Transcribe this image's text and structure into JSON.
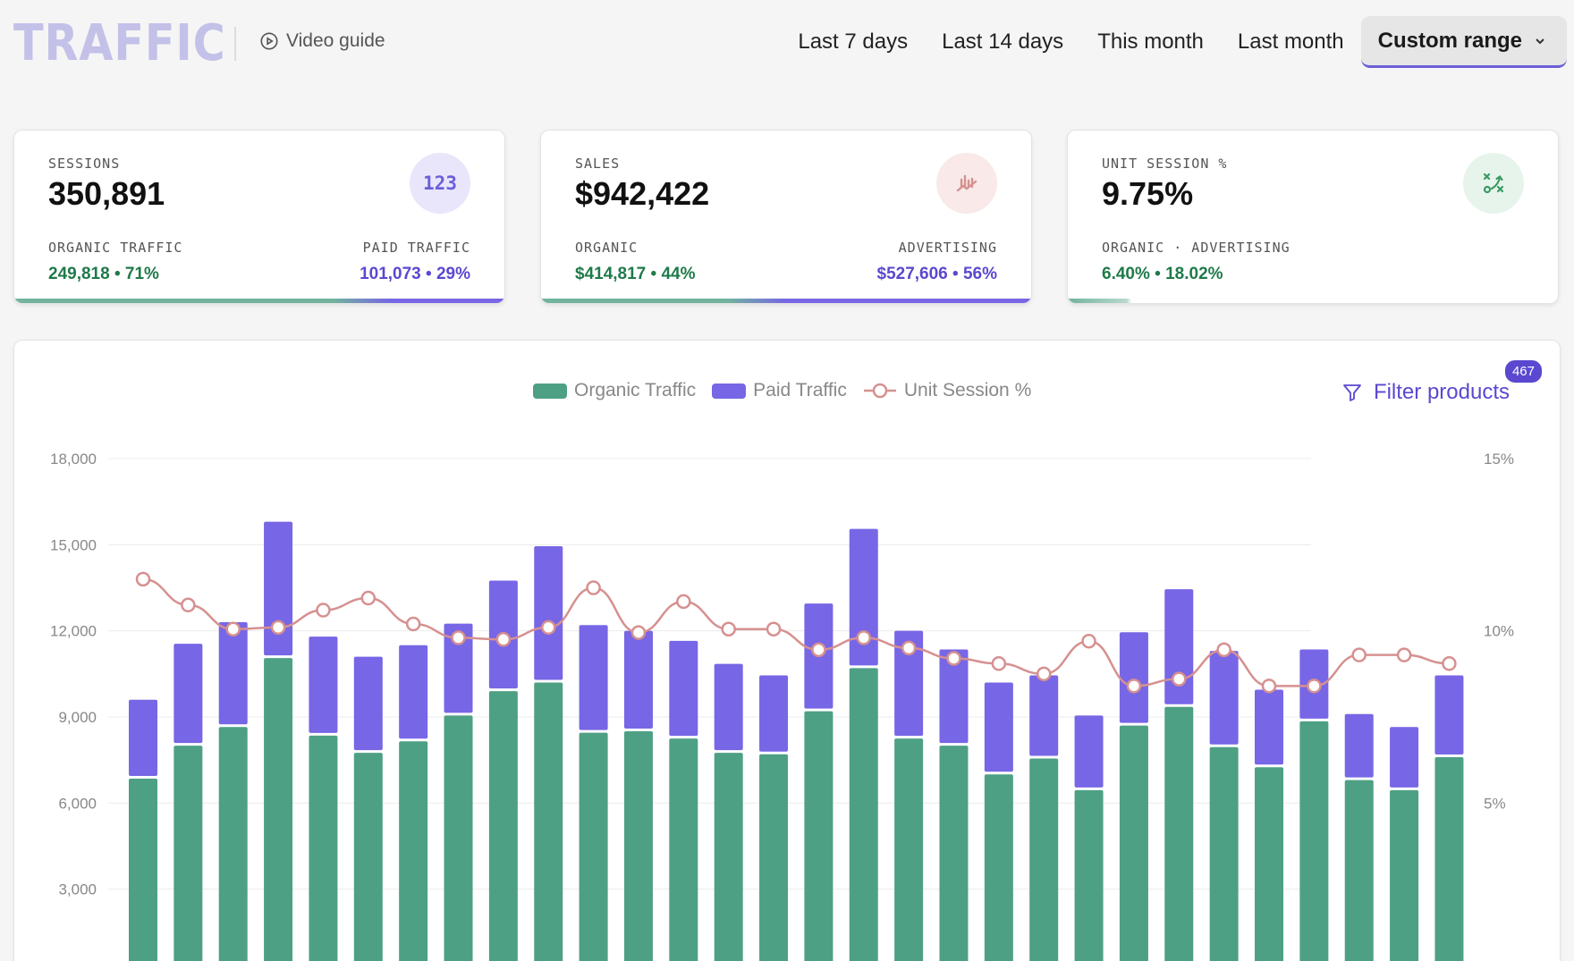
{
  "header": {
    "title": "TRAFFIC",
    "video_guide": "Video guide",
    "ranges": [
      "Last 7 days",
      "Last 14 days",
      "This month",
      "Last month"
    ],
    "active_range": "Custom range"
  },
  "cards": {
    "sessions": {
      "label": "SESSIONS",
      "value": "350,891",
      "icon": "123",
      "left_label": "ORGANIC TRAFFIC",
      "left_value": "249,818",
      "left_pct": "71%",
      "right_label": "PAID TRAFFIC",
      "right_value": "101,073",
      "right_pct": "29%",
      "split": 0.71
    },
    "sales": {
      "label": "SALES",
      "value": "$942,422",
      "left_label": "ORGANIC",
      "left_value": "$414,817",
      "left_pct": "44%",
      "right_label": "ADVERTISING",
      "right_value": "$527,606",
      "right_pct": "56%",
      "split": 0.44
    },
    "unit_session": {
      "label": "UNIT SESSION %",
      "value": "9.75%",
      "sub_label": "ORGANIC · ADVERTISING",
      "organic_value": "6.40%",
      "advertising_value": "18.02%",
      "split": 0.12
    }
  },
  "colors": {
    "organic": "#4ea085",
    "paid": "#7766e5",
    "line": "#d69090",
    "accent": "#5a48d0"
  },
  "filter": {
    "label": "Filter products",
    "count": "467"
  },
  "chart_data": {
    "type": "bar",
    "stacked": true,
    "legend": [
      "Organic Traffic",
      "Paid Traffic",
      "Unit Session %"
    ],
    "y_ticks": [
      "18,000",
      "15,000",
      "12,000",
      "9,000",
      "6,000",
      "3,000"
    ],
    "y2_ticks": [
      "15%",
      "10%",
      "5%"
    ],
    "ylim": [
      0,
      18000
    ],
    "y2lim": [
      0,
      15
    ],
    "series": [
      {
        "name": "Organic Traffic",
        "values": [
          6850,
          8000,
          8650,
          11050,
          8350,
          7750,
          8150,
          9050,
          9900,
          10200,
          8450,
          8500,
          8250,
          7750,
          7700,
          9200,
          10700,
          8250,
          8000,
          7000,
          7550,
          6450,
          8700,
          9350,
          7950,
          7250,
          8850,
          6800,
          6450,
          7600
        ]
      },
      {
        "name": "Paid Traffic",
        "values": [
          2750,
          3550,
          3650,
          4750,
          3450,
          3350,
          3350,
          3200,
          3850,
          4750,
          3750,
          3500,
          3400,
          3100,
          2750,
          3750,
          4850,
          3750,
          3350,
          3200,
          2900,
          2600,
          3250,
          4100,
          3350,
          2700,
          2500,
          2300,
          2200,
          2850
        ]
      },
      {
        "name": "Unit Session %",
        "values": [
          11.5,
          10.75,
          10.05,
          10.1,
          10.6,
          10.95,
          10.2,
          9.8,
          9.75,
          10.1,
          11.25,
          9.95,
          10.85,
          10.05,
          10.05,
          9.45,
          9.8,
          9.5,
          9.2,
          9.05,
          8.75,
          9.7,
          8.4,
          8.6,
          9.45,
          8.4,
          8.4,
          9.3,
          9.3,
          9.05
        ]
      }
    ]
  }
}
